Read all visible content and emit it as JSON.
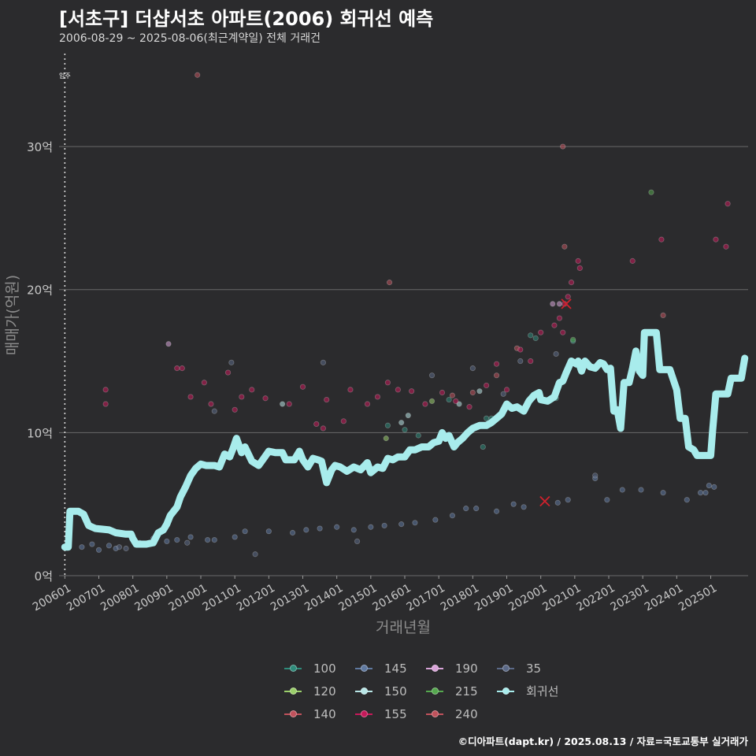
{
  "header": {
    "title": "[서초구] 더샵서초 아파트(2006) 회귀선 예측",
    "subtitle": "2006-08-29 ~ 2025-08-06(최근계약일) 전체 거래건"
  },
  "caption": "©디아파트(dapt.kr) / 2025.08.13 / 자료=국토교통부 실거래가",
  "colors": {
    "background": "#2b2b2d",
    "grid": "#6a6a6a",
    "regression": "#a8ecec",
    "marker": "#d0212d"
  },
  "chart_data": {
    "type": "scatter",
    "title": "[서초구] 더샵서초 아파트(2006) 회귀선 예측",
    "xlabel": "거래년월",
    "ylabel": "매매가(억원)",
    "xlim": [
      2005.83,
      2026.1
    ],
    "ylim": [
      0,
      36.5
    ],
    "x_ticks": [
      2006,
      2007,
      2008,
      2009,
      2010,
      2011,
      2012,
      2013,
      2014,
      2015,
      2016,
      2017,
      2018,
      2019,
      2020,
      2021,
      2022,
      2023,
      2024,
      2025
    ],
    "x_tick_labels": [
      "200601",
      "200701",
      "200801",
      "200901",
      "201001",
      "201101",
      "201201",
      "201301",
      "201401",
      "201501",
      "201601",
      "201701",
      "201801",
      "201901",
      "202001",
      "202101",
      "202201",
      "202301",
      "202401",
      "202501"
    ],
    "y_ticks": [
      0,
      10,
      20,
      30
    ],
    "y_tick_labels": [
      "0억",
      "10억",
      "20억",
      "30억"
    ],
    "annotation": {
      "label": "입주",
      "x": 2006.0
    },
    "highlight_marks": [
      {
        "x": 2020.12,
        "y": 5.2
      },
      {
        "x": 2020.75,
        "y": 19.0
      }
    ],
    "series": [
      {
        "name": "100",
        "color": "#2e8b7a",
        "points": [
          [
            2018.4,
            11.0
          ],
          [
            2018.55,
            11.0
          ],
          [
            2019.7,
            16.8
          ],
          [
            2019.85,
            16.6
          ],
          [
            2020.45,
            12.4
          ],
          [
            2020.95,
            16.4
          ],
          [
            2015.5,
            10.5
          ],
          [
            2016.0,
            10.2
          ],
          [
            2016.4,
            9.8
          ],
          [
            2017.3,
            12.3
          ],
          [
            2018.3,
            9.0
          ]
        ]
      },
      {
        "name": "120",
        "color": "#9bcf6b",
        "points": [
          [
            2015.45,
            9.6
          ],
          [
            2016.8,
            12.2
          ]
        ]
      },
      {
        "name": "140",
        "color": "#c0525c",
        "points": [
          [
            2017.4,
            12.6
          ],
          [
            2018.0,
            12.8
          ],
          [
            2018.7,
            14.0
          ],
          [
            2019.3,
            15.9
          ]
        ]
      },
      {
        "name": "145",
        "color": "#5f79a0",
        "points": [
          [
            2006.5,
            2.0
          ],
          [
            2006.8,
            2.2
          ],
          [
            2007.0,
            1.8
          ],
          [
            2007.3,
            2.1
          ],
          [
            2007.5,
            1.9
          ],
          [
            2008.2,
            2.3
          ],
          [
            2008.6,
            2.6
          ],
          [
            2009.0,
            2.4
          ],
          [
            2009.3,
            2.5
          ],
          [
            2009.7,
            2.7
          ],
          [
            2010.2,
            2.5
          ],
          [
            2010.4,
            2.5
          ],
          [
            2011.0,
            2.7
          ],
          [
            2011.3,
            3.1
          ],
          [
            2012.0,
            3.1
          ],
          [
            2012.7,
            3.0
          ],
          [
            2013.1,
            3.2
          ],
          [
            2013.5,
            3.3
          ],
          [
            2014.0,
            3.4
          ],
          [
            2014.5,
            3.2
          ],
          [
            2015.0,
            3.4
          ],
          [
            2015.4,
            3.5
          ],
          [
            2015.9,
            3.6
          ],
          [
            2016.3,
            3.7
          ],
          [
            2016.9,
            3.9
          ],
          [
            2017.4,
            4.2
          ],
          [
            2017.8,
            4.7
          ],
          [
            2018.1,
            4.7
          ],
          [
            2018.7,
            4.5
          ],
          [
            2019.2,
            5.0
          ],
          [
            2019.5,
            4.8
          ],
          [
            2020.5,
            5.1
          ],
          [
            2020.8,
            5.3
          ],
          [
            2021.6,
            6.8
          ],
          [
            2021.95,
            5.3
          ],
          [
            2022.4,
            6.0
          ],
          [
            2022.95,
            6.0
          ],
          [
            2023.6,
            5.8
          ],
          [
            2024.3,
            5.3
          ],
          [
            2024.7,
            5.8
          ],
          [
            2024.85,
            5.8
          ],
          [
            2024.95,
            6.3
          ],
          [
            2025.1,
            6.2
          ]
        ]
      },
      {
        "name": "150",
        "color": "#b8e6e6",
        "points": [
          [
            2012.4,
            12.0
          ],
          [
            2015.9,
            10.7
          ],
          [
            2016.1,
            11.2
          ],
          [
            2017.6,
            12.0
          ],
          [
            2018.2,
            12.9
          ]
        ]
      },
      {
        "name": "155",
        "color": "#c6195a",
        "points": [
          [
            2007.2,
            13.0
          ],
          [
            2007.2,
            12.0
          ],
          [
            2009.3,
            14.5
          ],
          [
            2009.45,
            14.5
          ],
          [
            2009.7,
            12.5
          ],
          [
            2010.1,
            13.5
          ],
          [
            2010.3,
            12.0
          ],
          [
            2010.8,
            14.2
          ],
          [
            2011.0,
            11.6
          ],
          [
            2011.2,
            12.5
          ],
          [
            2011.5,
            13.0
          ],
          [
            2011.9,
            12.4
          ],
          [
            2012.6,
            12.0
          ],
          [
            2013.0,
            13.2
          ],
          [
            2013.4,
            10.6
          ],
          [
            2013.6,
            10.3
          ],
          [
            2013.7,
            12.3
          ],
          [
            2014.2,
            10.8
          ],
          [
            2014.4,
            13.0
          ],
          [
            2014.9,
            12.0
          ],
          [
            2015.2,
            12.5
          ],
          [
            2015.5,
            13.5
          ],
          [
            2015.8,
            13.0
          ],
          [
            2016.2,
            12.9
          ],
          [
            2016.6,
            12.0
          ],
          [
            2017.1,
            12.8
          ],
          [
            2017.5,
            12.2
          ],
          [
            2017.9,
            11.8
          ],
          [
            2018.4,
            13.3
          ],
          [
            2018.7,
            14.8
          ],
          [
            2019.0,
            13.0
          ],
          [
            2019.4,
            15.8
          ],
          [
            2019.7,
            15.0
          ],
          [
            2020.0,
            17.0
          ],
          [
            2020.4,
            17.5
          ],
          [
            2020.55,
            18.0
          ],
          [
            2020.65,
            17.0
          ],
          [
            2020.7,
            19.0
          ],
          [
            2020.8,
            19.5
          ],
          [
            2020.9,
            20.5
          ],
          [
            2021.1,
            22.0
          ],
          [
            2021.15,
            21.5
          ],
          [
            2022.7,
            22.0
          ],
          [
            2023.55,
            23.5
          ],
          [
            2025.15,
            23.5
          ],
          [
            2025.45,
            23.0
          ],
          [
            2025.5,
            26.0
          ]
        ]
      },
      {
        "name": "190",
        "color": "#d9a4d9",
        "points": [
          [
            2009.05,
            16.2
          ],
          [
            2020.35,
            19.0
          ],
          [
            2020.55,
            19.0
          ]
        ]
      },
      {
        "name": "215",
        "color": "#55a84e",
        "points": [
          [
            2020.95,
            16.5
          ],
          [
            2023.25,
            26.8
          ]
        ]
      },
      {
        "name": "240",
        "color": "#c0525c",
        "points": [
          [
            2009.9,
            35.0
          ],
          [
            2020.65,
            30.0
          ],
          [
            2015.55,
            20.5
          ],
          [
            2020.7,
            23.0
          ],
          [
            2023.6,
            18.2
          ]
        ]
      },
      {
        "name": "35",
        "color": "#5b6987",
        "points": [
          [
            2007.6,
            2.0
          ],
          [
            2007.8,
            1.9
          ],
          [
            2008.3,
            2.2
          ],
          [
            2009.6,
            2.3
          ],
          [
            2010.4,
            11.5
          ],
          [
            2010.9,
            14.9
          ],
          [
            2011.6,
            1.5
          ],
          [
            2014.6,
            2.4
          ],
          [
            2013.6,
            14.9
          ],
          [
            2016.8,
            14.0
          ],
          [
            2018.0,
            14.5
          ],
          [
            2018.9,
            12.7
          ],
          [
            2019.4,
            15.0
          ],
          [
            2020.45,
            15.5
          ],
          [
            2021.6,
            7.0
          ]
        ]
      },
      {
        "name": "회귀선",
        "color": "#a8ecec",
        "line": [
          [
            2006.0,
            2.0
          ],
          [
            2006.1,
            2.0
          ],
          [
            2006.15,
            4.5
          ],
          [
            2006.4,
            4.5
          ],
          [
            2006.55,
            4.3
          ],
          [
            2006.7,
            3.5
          ],
          [
            2006.9,
            3.3
          ],
          [
            2007.3,
            3.2
          ],
          [
            2007.5,
            3.0
          ],
          [
            2007.8,
            2.9
          ],
          [
            2007.95,
            2.9
          ],
          [
            2008.0,
            2.6
          ],
          [
            2008.1,
            2.2
          ],
          [
            2008.4,
            2.2
          ],
          [
            2008.6,
            2.3
          ],
          [
            2008.75,
            3.0
          ],
          [
            2008.9,
            3.2
          ],
          [
            2009.0,
            3.6
          ],
          [
            2009.1,
            4.2
          ],
          [
            2009.3,
            4.8
          ],
          [
            2009.4,
            5.5
          ],
          [
            2009.55,
            6.2
          ],
          [
            2009.7,
            7.0
          ],
          [
            2009.85,
            7.5
          ],
          [
            2010.0,
            7.8
          ],
          [
            2010.15,
            7.7
          ],
          [
            2010.4,
            7.7
          ],
          [
            2010.55,
            7.6
          ],
          [
            2010.7,
            8.5
          ],
          [
            2010.85,
            8.3
          ],
          [
            2010.95,
            8.9
          ],
          [
            2011.05,
            9.6
          ],
          [
            2011.2,
            8.6
          ],
          [
            2011.3,
            9.0
          ],
          [
            2011.4,
            8.5
          ],
          [
            2011.5,
            8.0
          ],
          [
            2011.7,
            7.7
          ],
          [
            2011.85,
            8.2
          ],
          [
            2012.0,
            8.7
          ],
          [
            2012.2,
            8.6
          ],
          [
            2012.4,
            8.6
          ],
          [
            2012.5,
            8.1
          ],
          [
            2012.75,
            8.1
          ],
          [
            2012.9,
            8.7
          ],
          [
            2013.0,
            8.1
          ],
          [
            2013.15,
            7.6
          ],
          [
            2013.3,
            8.2
          ],
          [
            2013.45,
            8.1
          ],
          [
            2013.55,
            8.0
          ],
          [
            2013.7,
            6.5
          ],
          [
            2013.85,
            7.4
          ],
          [
            2013.95,
            7.7
          ],
          [
            2014.1,
            7.6
          ],
          [
            2014.3,
            7.3
          ],
          [
            2014.5,
            7.6
          ],
          [
            2014.7,
            7.4
          ],
          [
            2014.9,
            7.9
          ],
          [
            2015.0,
            7.2
          ],
          [
            2015.2,
            7.6
          ],
          [
            2015.35,
            7.5
          ],
          [
            2015.5,
            8.2
          ],
          [
            2015.65,
            8.1
          ],
          [
            2015.8,
            8.3
          ],
          [
            2016.0,
            8.3
          ],
          [
            2016.15,
            8.8
          ],
          [
            2016.3,
            8.8
          ],
          [
            2016.5,
            9.0
          ],
          [
            2016.7,
            9.0
          ],
          [
            2016.85,
            9.3
          ],
          [
            2017.0,
            9.4
          ],
          [
            2017.1,
            10.0
          ],
          [
            2017.2,
            9.6
          ],
          [
            2017.3,
            9.8
          ],
          [
            2017.45,
            9.0
          ],
          [
            2017.55,
            9.3
          ],
          [
            2017.7,
            9.6
          ],
          [
            2017.85,
            10.0
          ],
          [
            2018.0,
            10.3
          ],
          [
            2018.2,
            10.5
          ],
          [
            2018.4,
            10.5
          ],
          [
            2018.55,
            10.7
          ],
          [
            2018.7,
            11.0
          ],
          [
            2018.85,
            11.3
          ],
          [
            2019.0,
            12.0
          ],
          [
            2019.15,
            11.7
          ],
          [
            2019.3,
            11.8
          ],
          [
            2019.5,
            11.5
          ],
          [
            2019.65,
            12.2
          ],
          [
            2019.8,
            12.6
          ],
          [
            2019.95,
            12.8
          ],
          [
            2020.0,
            12.3
          ],
          [
            2020.2,
            12.2
          ],
          [
            2020.4,
            12.5
          ],
          [
            2020.55,
            13.5
          ],
          [
            2020.65,
            13.6
          ],
          [
            2020.75,
            14.2
          ],
          [
            2020.9,
            15.0
          ],
          [
            2021.05,
            14.8
          ],
          [
            2021.1,
            15.0
          ],
          [
            2021.2,
            14.3
          ],
          [
            2021.3,
            15.0
          ],
          [
            2021.45,
            14.6
          ],
          [
            2021.6,
            14.5
          ],
          [
            2021.75,
            14.9
          ],
          [
            2021.85,
            14.8
          ],
          [
            2021.95,
            14.4
          ],
          [
            2022.05,
            14.5
          ],
          [
            2022.15,
            11.5
          ],
          [
            2022.25,
            11.6
          ],
          [
            2022.35,
            10.3
          ],
          [
            2022.45,
            13.5
          ],
          [
            2022.6,
            13.5
          ],
          [
            2022.7,
            14.5
          ],
          [
            2022.8,
            15.7
          ],
          [
            2022.9,
            14.3
          ],
          [
            2023.0,
            14.0
          ],
          [
            2023.05,
            17.0
          ],
          [
            2023.4,
            17.0
          ],
          [
            2023.5,
            14.4
          ],
          [
            2023.8,
            14.4
          ],
          [
            2024.0,
            13.0
          ],
          [
            2024.1,
            11.0
          ],
          [
            2024.25,
            11.0
          ],
          [
            2024.35,
            9.0
          ],
          [
            2024.5,
            8.8
          ],
          [
            2024.6,
            8.4
          ],
          [
            2025.0,
            8.4
          ],
          [
            2025.05,
            10.0
          ],
          [
            2025.15,
            12.7
          ],
          [
            2025.5,
            12.7
          ],
          [
            2025.6,
            13.8
          ],
          [
            2025.9,
            13.8
          ],
          [
            2026.0,
            15.2
          ]
        ]
      }
    ]
  }
}
